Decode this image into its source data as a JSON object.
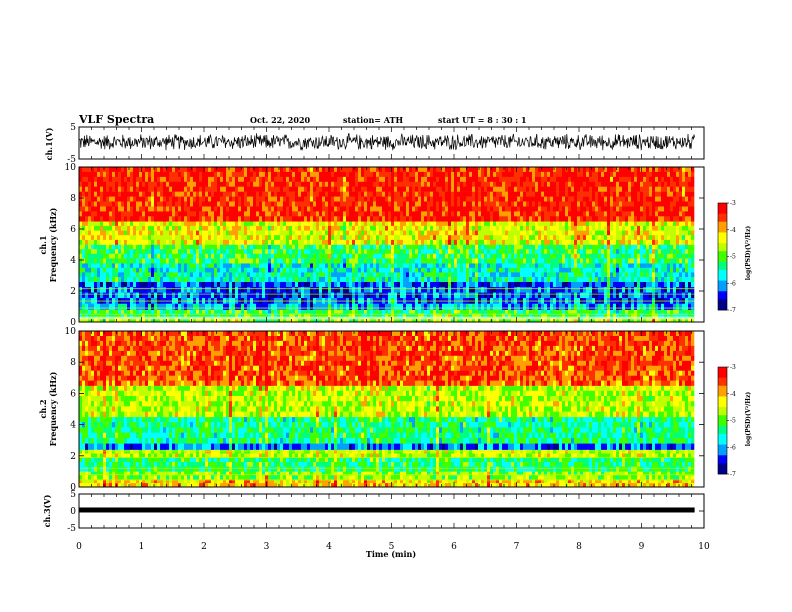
{
  "header": {
    "title": "VLF Spectra",
    "date": "Oct. 22, 2020",
    "station": "station= ATH",
    "start": "start  UT =   8 : 30 : 1"
  },
  "colors": {
    "spectrum": [
      "#00008b",
      "#0000ff",
      "#00a0ff",
      "#00ffff",
      "#00ff80",
      "#40ff00",
      "#c0ff00",
      "#ffff00",
      "#ffa000",
      "#ff3000",
      "#ff0000"
    ]
  },
  "chart_data": [
    {
      "type": "line",
      "name": "ch1-waveform",
      "ylabel": "ch.1(V)",
      "xlim": [
        0,
        9.85
      ],
      "ylim": [
        -5,
        5
      ],
      "y_ticks": [
        "5",
        "-5"
      ],
      "baseline": 0.3,
      "amplitude": 2.2
    },
    {
      "type": "heatmap",
      "name": "ch1-spectrogram",
      "ylabel": "ch.1",
      "ylabel2": "Frequency  (kHz)",
      "xlim": [
        0,
        10
      ],
      "ylim": [
        0,
        10
      ],
      "y_ticks": [
        "0",
        "2",
        "4",
        "6",
        "8",
        "10"
      ],
      "colorbar": {
        "range": [
          -7,
          -3
        ],
        "ticks": [
          "-3",
          "-4",
          "-5",
          "-6",
          "-7"
        ],
        "label": "log(PSD)(V²/Hz)"
      },
      "bands_khz": [
        {
          "f": [
            0,
            0.3
          ],
          "level": -4.8
        },
        {
          "f": [
            0.3,
            0.8
          ],
          "level": -5.2
        },
        {
          "f": [
            0.8,
            1.2
          ],
          "level": -6.0
        },
        {
          "f": [
            1.2,
            2.6
          ],
          "level": -6.3
        },
        {
          "f": [
            2.6,
            3.8
          ],
          "level": -5.6
        },
        {
          "f": [
            3.8,
            5.0
          ],
          "level": -5.2
        },
        {
          "f": [
            5.0,
            6.5
          ],
          "level": -4.4
        },
        {
          "f": [
            6.5,
            10
          ],
          "level": -3.4
        }
      ]
    },
    {
      "type": "heatmap",
      "name": "ch2-spectrogram",
      "ylabel": "ch.2",
      "ylabel2": "Frequency  (kHz)",
      "xlim": [
        0,
        10
      ],
      "ylim": [
        0,
        10
      ],
      "y_ticks": [
        "0",
        "2",
        "4",
        "6",
        "8",
        "10"
      ],
      "colorbar": {
        "range": [
          -7,
          -3
        ],
        "ticks": [
          "-3",
          "-4",
          "-5",
          "-6",
          "-7"
        ],
        "label": "log(PSD)(V²/Hz)"
      },
      "bands_khz": [
        {
          "f": [
            0,
            0.5
          ],
          "level": -4.2
        },
        {
          "f": [
            0.5,
            1.0
          ],
          "level": -4.8
        },
        {
          "f": [
            1.0,
            1.9
          ],
          "level": -5.3
        },
        {
          "f": [
            1.9,
            2.4
          ],
          "level": -4.6
        },
        {
          "f": [
            2.4,
            2.8
          ],
          "level": -6.2
        },
        {
          "f": [
            2.8,
            4.5
          ],
          "level": -5.4
        },
        {
          "f": [
            4.5,
            6.5
          ],
          "level": -4.6
        },
        {
          "f": [
            6.5,
            10
          ],
          "level": -3.6
        }
      ]
    },
    {
      "type": "line",
      "name": "ch3-waveform",
      "ylabel": "ch.3(V)",
      "xlabel": "Time  (min)",
      "xlim": [
        0,
        10
      ],
      "ylim": [
        -5,
        5
      ],
      "y_ticks": [
        "5",
        "0",
        "-5"
      ],
      "x_ticks": [
        "0",
        "1",
        "2",
        "3",
        "4",
        "5",
        "6",
        "7",
        "8",
        "9",
        "10"
      ],
      "baseline": 0.3,
      "amplitude": 0.2
    }
  ]
}
